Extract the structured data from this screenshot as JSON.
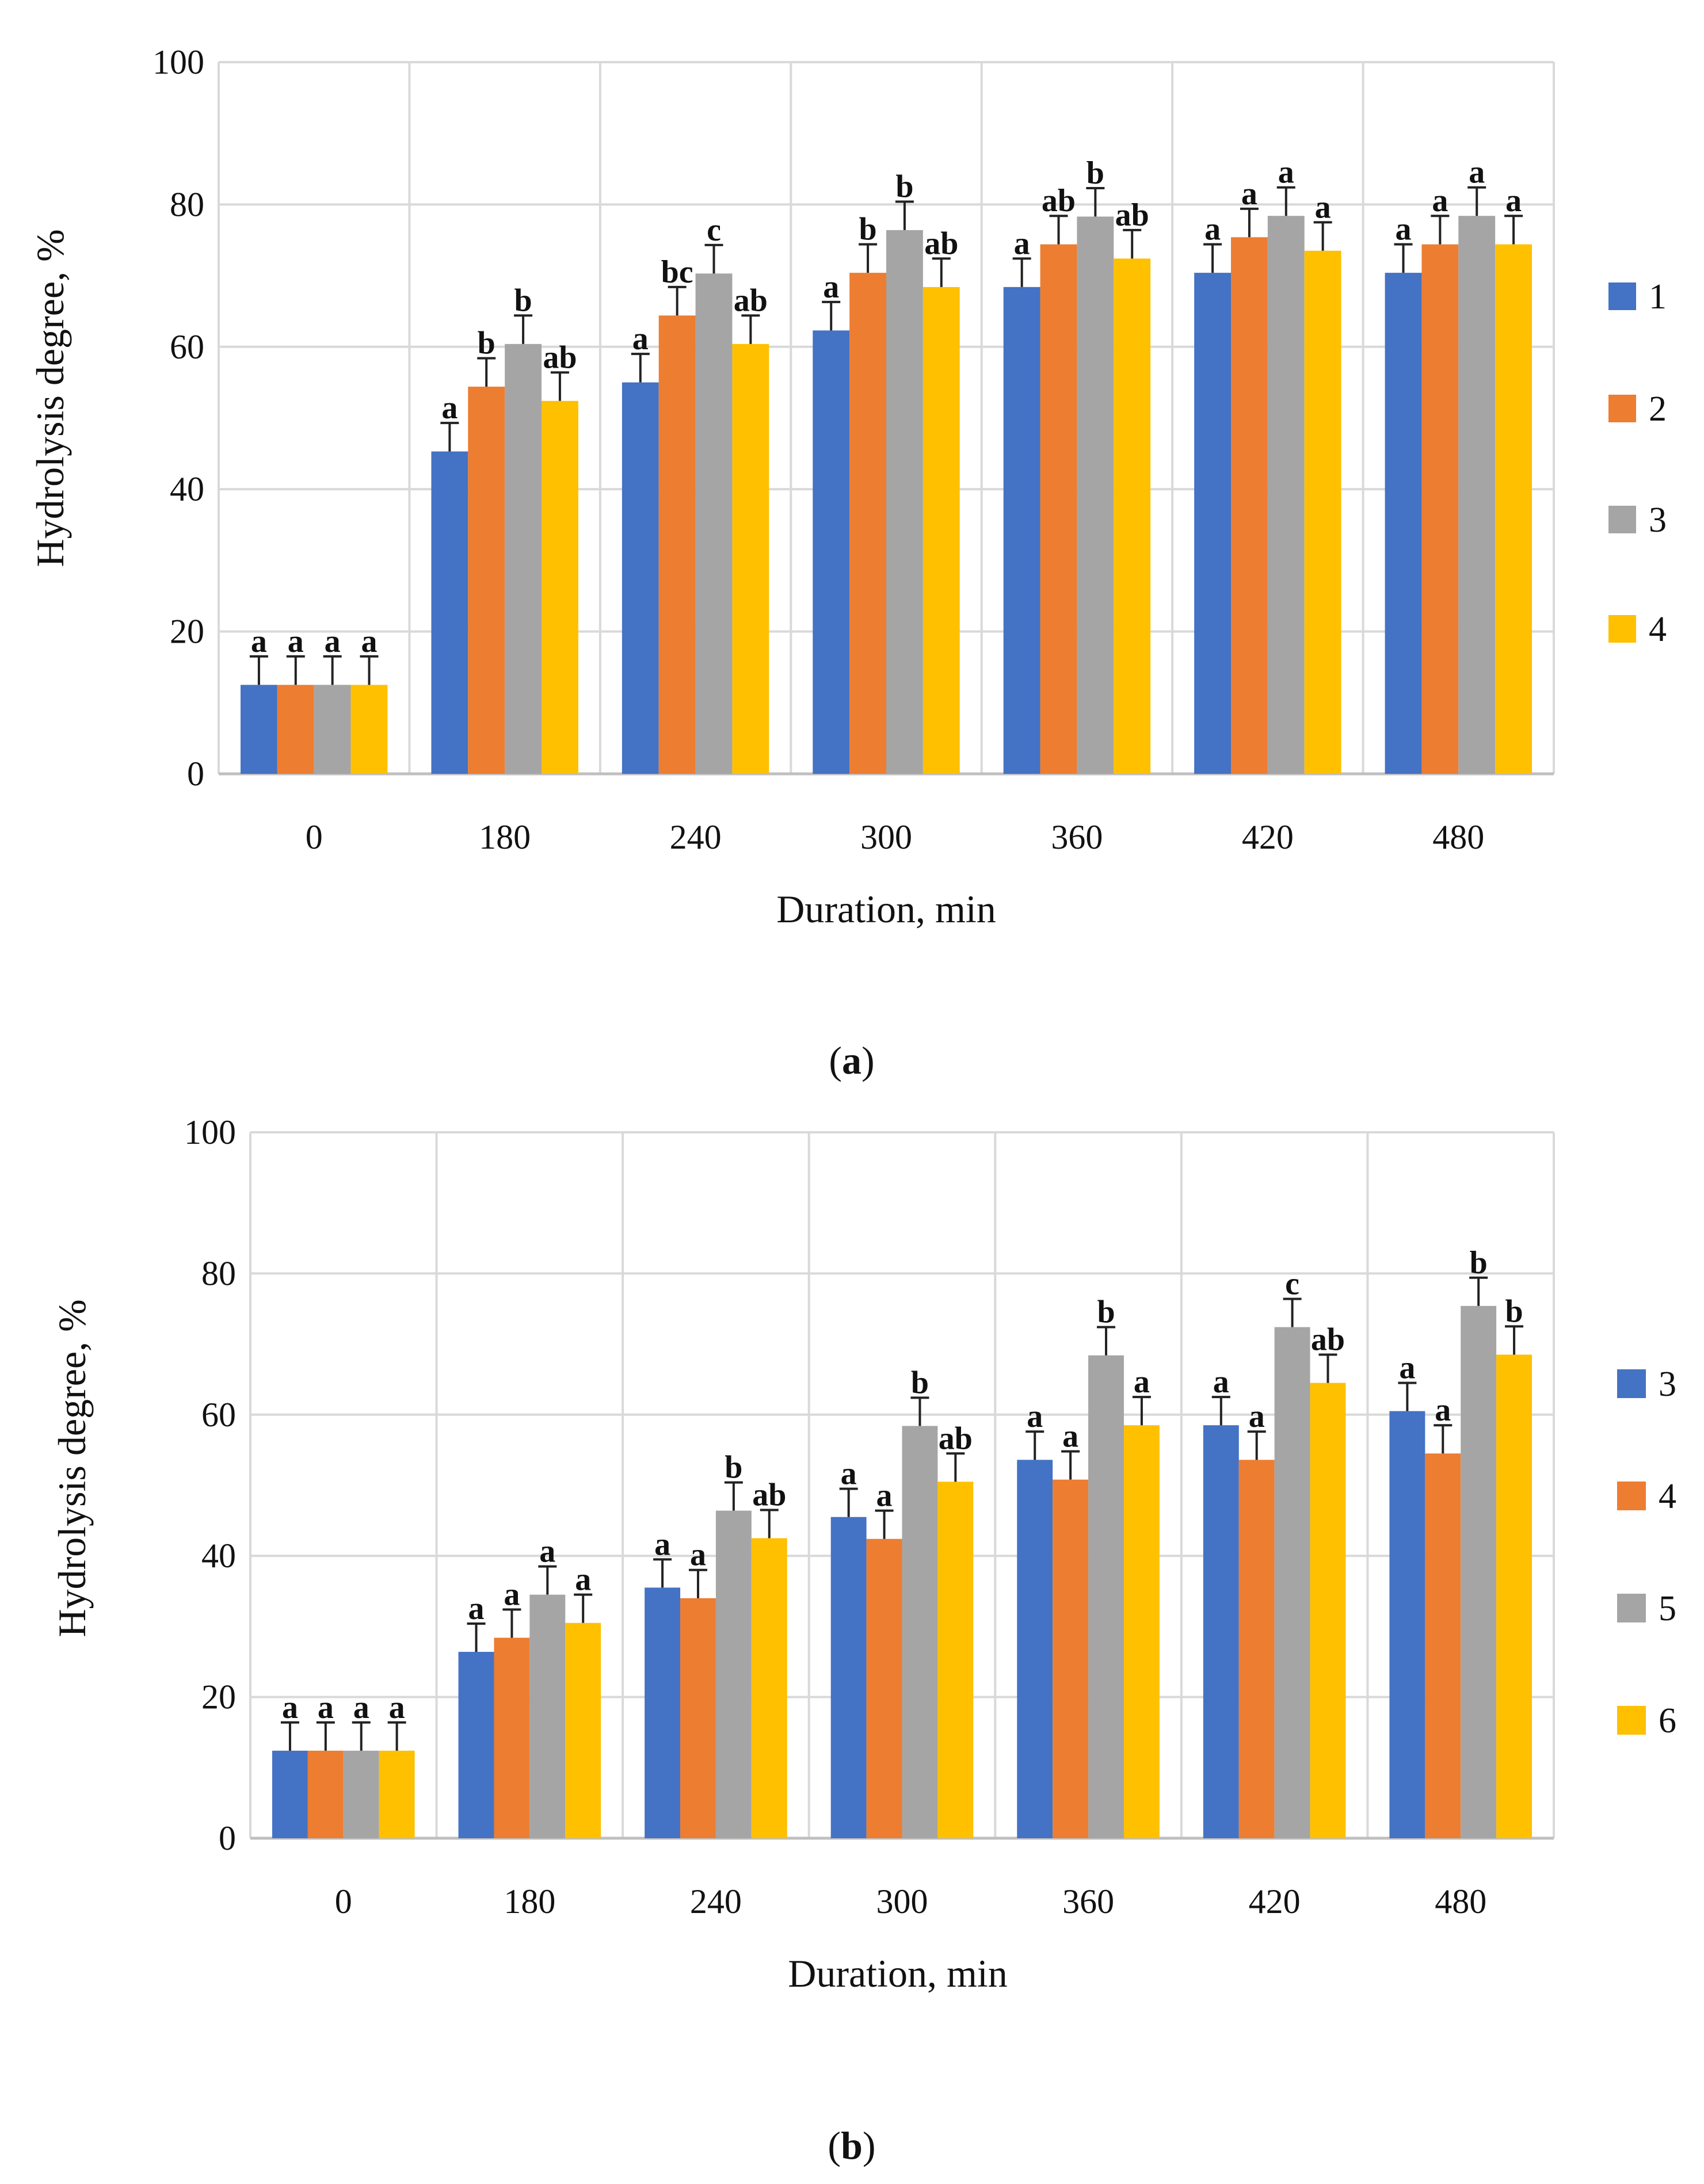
{
  "chart_data": [
    {
      "type": "bar",
      "panel_label": "a",
      "xlabel": "Duration, min",
      "ylabel": "Hydrolysis degree, %",
      "ylim": [
        0,
        100
      ],
      "yticks": [
        "0",
        "20",
        "40",
        "60",
        "80",
        "100"
      ],
      "grid": true,
      "legend_position": "right",
      "categories": [
        "0",
        "180",
        "240",
        "300",
        "360",
        "420",
        "480"
      ],
      "series": [
        {
          "name": "1",
          "color": "#4472C4",
          "values": [
            12.5,
            45.3,
            55.0,
            62.3,
            68.4,
            70.4,
            70.4
          ],
          "errors": [
            4,
            4,
            4,
            4,
            4,
            4,
            4
          ],
          "labels": [
            "a",
            "a",
            "a",
            "a",
            "a",
            "a",
            "a"
          ]
        },
        {
          "name": "2",
          "color": "#ED7D31",
          "values": [
            12.5,
            54.4,
            64.4,
            70.4,
            74.4,
            75.4,
            74.4
          ],
          "errors": [
            4,
            4,
            4,
            4,
            4,
            4,
            4
          ],
          "labels": [
            "a",
            "b",
            "bc",
            "b",
            "ab",
            "a",
            "a"
          ]
        },
        {
          "name": "3",
          "color": "#A5A5A5",
          "values": [
            12.5,
            60.4,
            70.3,
            76.4,
            78.3,
            78.4,
            78.4
          ],
          "errors": [
            4,
            4,
            4,
            4,
            4,
            4,
            4
          ],
          "labels": [
            "a",
            "b",
            "c",
            "b",
            "b",
            "a",
            "a"
          ]
        },
        {
          "name": "4",
          "color": "#FFC000",
          "values": [
            12.5,
            52.4,
            60.4,
            68.4,
            72.4,
            73.5,
            74.4
          ],
          "errors": [
            4,
            4,
            4,
            4,
            4,
            4,
            4
          ],
          "labels": [
            "a",
            "ab",
            "ab",
            "ab",
            "ab",
            "a",
            "a"
          ]
        }
      ]
    },
    {
      "type": "bar",
      "panel_label": "b",
      "xlabel": "Duration, min",
      "ylabel": "Hydrolysis degree, %",
      "ylim": [
        0,
        100
      ],
      "yticks": [
        "0",
        "20",
        "40",
        "60",
        "80",
        "100"
      ],
      "grid": true,
      "legend_position": "right",
      "categories": [
        "0",
        "180",
        "240",
        "300",
        "360",
        "420",
        "480"
      ],
      "series": [
        {
          "name": "3",
          "color": "#4472C4",
          "values": [
            12.4,
            26.4,
            35.5,
            45.5,
            53.6,
            58.5,
            60.5
          ],
          "errors": [
            4,
            4,
            4,
            4,
            4,
            4,
            4
          ],
          "labels": [
            "a",
            "a",
            "a",
            "a",
            "a",
            "a",
            "a"
          ]
        },
        {
          "name": "4",
          "color": "#ED7D31",
          "values": [
            12.4,
            28.4,
            34.0,
            42.4,
            50.8,
            53.6,
            54.5
          ],
          "errors": [
            4,
            4,
            4,
            4,
            4,
            4,
            4
          ],
          "labels": [
            "a",
            "a",
            "a",
            "a",
            "a",
            "a",
            "a"
          ]
        },
        {
          "name": "5",
          "color": "#A5A5A5",
          "values": [
            12.4,
            34.5,
            46.4,
            58.4,
            68.4,
            72.4,
            75.4
          ],
          "errors": [
            4,
            4,
            4,
            4,
            4,
            4,
            4
          ],
          "labels": [
            "a",
            "a",
            "b",
            "b",
            "b",
            "c",
            "b"
          ]
        },
        {
          "name": "6",
          "color": "#FFC000",
          "values": [
            12.4,
            30.5,
            42.5,
            50.5,
            58.5,
            64.5,
            68.5
          ],
          "errors": [
            4,
            4,
            4,
            4,
            4,
            4,
            4
          ],
          "labels": [
            "a",
            "a",
            "ab",
            "ab",
            "a",
            "ab",
            "b"
          ]
        }
      ]
    }
  ]
}
